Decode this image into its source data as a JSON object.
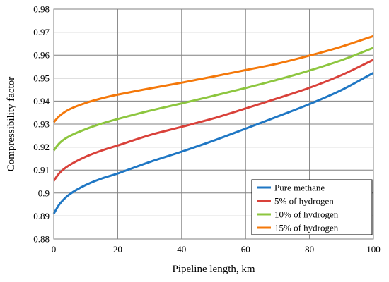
{
  "chart_data": {
    "type": "line",
    "title": "",
    "xlabel": "Pipeline length, km",
    "ylabel": "Compressibility factor",
    "xlim": [
      0,
      100
    ],
    "ylim": [
      0.88,
      0.98
    ],
    "xticks": [
      0,
      20,
      40,
      60,
      80,
      100
    ],
    "yticks": [
      0.88,
      0.89,
      0.9,
      0.91,
      0.92,
      0.93,
      0.94,
      0.95,
      0.96,
      0.97,
      0.98
    ],
    "grid": true,
    "legend_position": "bottom-right",
    "x": [
      0,
      2,
      5,
      10,
      15,
      20,
      30,
      40,
      50,
      60,
      70,
      80,
      90,
      100
    ],
    "series": [
      {
        "name": "Pure methane",
        "color": "#1f77c4",
        "values": [
          0.891,
          0.8955,
          0.8995,
          0.9035,
          0.9063,
          0.9085,
          0.9135,
          0.918,
          0.9228,
          0.928,
          0.9333,
          0.9387,
          0.9448,
          0.9523
        ]
      },
      {
        "name": "5% of hydrogen",
        "color": "#d9413a",
        "values": [
          0.9053,
          0.909,
          0.9122,
          0.9158,
          0.9185,
          0.9207,
          0.9252,
          0.9288,
          0.9325,
          0.9368,
          0.9412,
          0.9458,
          0.9513,
          0.958
        ]
      },
      {
        "name": "10% of hydrogen",
        "color": "#8dc63f",
        "values": [
          0.9185,
          0.922,
          0.9248,
          0.9278,
          0.9302,
          0.9322,
          0.9358,
          0.939,
          0.9423,
          0.9457,
          0.9493,
          0.9533,
          0.9578,
          0.9632
        ]
      },
      {
        "name": "15% of hydrogen",
        "color": "#f4780a",
        "values": [
          0.9308,
          0.9338,
          0.9365,
          0.9392,
          0.9412,
          0.9428,
          0.9455,
          0.948,
          0.9507,
          0.9535,
          0.9563,
          0.9598,
          0.9637,
          0.9683
        ]
      }
    ]
  }
}
